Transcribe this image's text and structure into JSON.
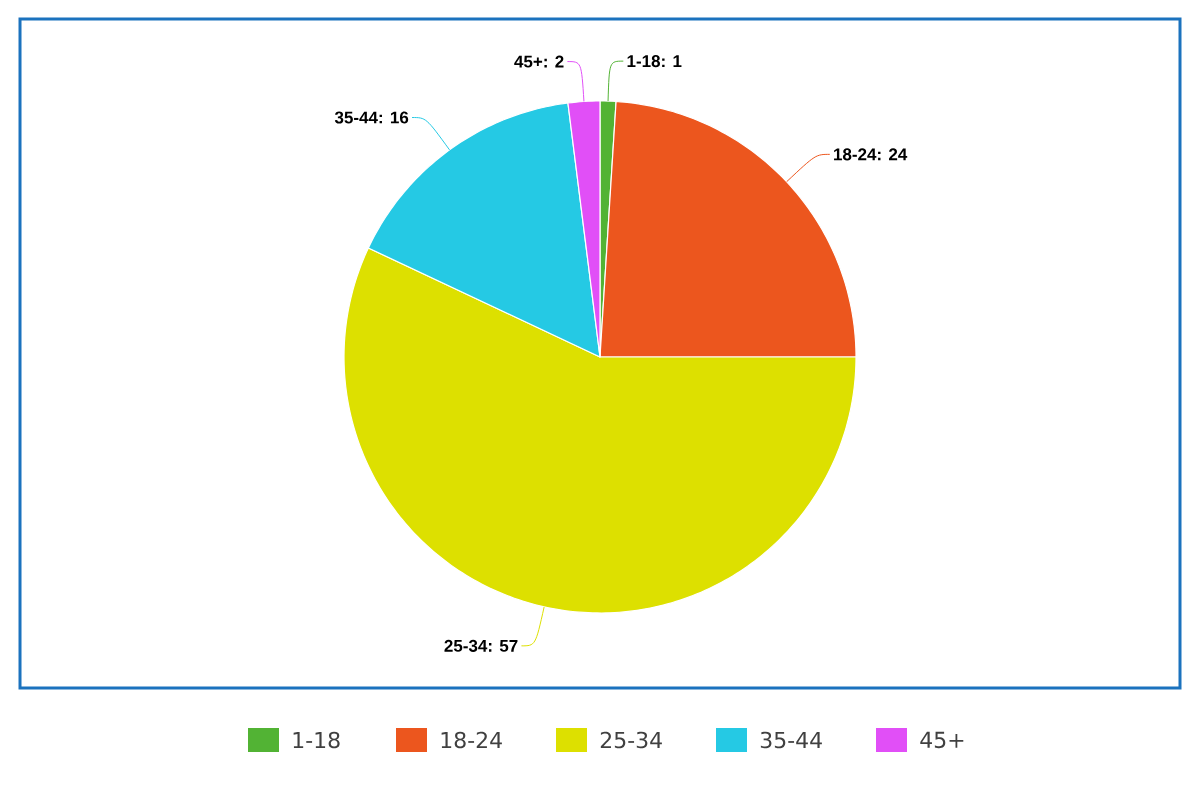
{
  "chart_data": {
    "type": "pie",
    "categories": [
      "1-18",
      "18-24",
      "25-34",
      "35-44",
      "45+"
    ],
    "values": [
      1,
      24,
      57,
      16,
      2
    ],
    "colors": [
      "#52b334",
      "#ec561e",
      "#dde000",
      "#25c9e4",
      "#e14ff7"
    ],
    "value_labels": [
      "1-18: 1",
      "18-24: 24",
      "25-34: 57",
      "35-44: 16",
      "45+: 2"
    ],
    "legend": "bottom"
  }
}
